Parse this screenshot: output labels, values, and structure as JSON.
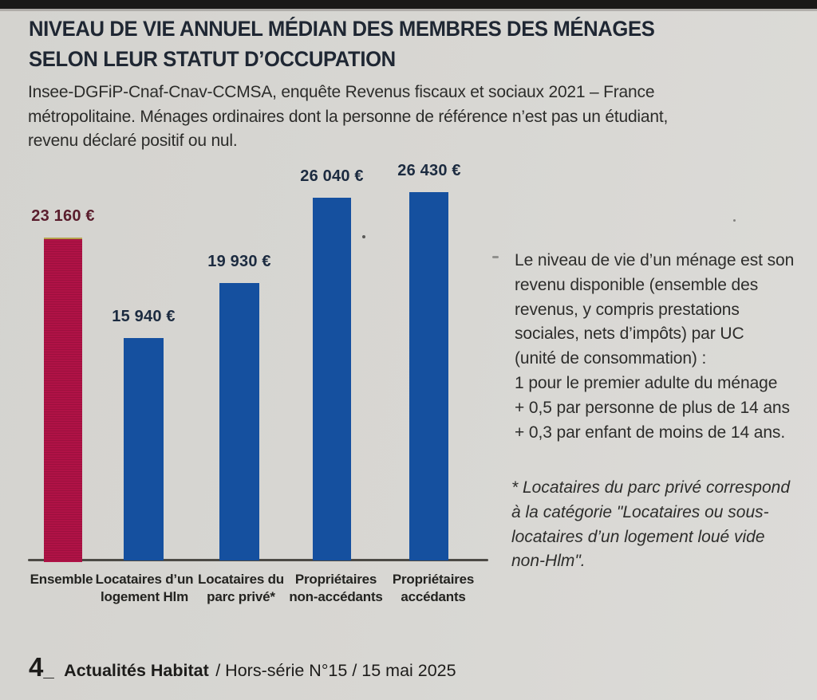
{
  "header": {
    "title_line1": "NIVEAU DE VIE ANNUEL MÉDIAN DES MEMBRES DES MÉNAGES",
    "title_line2": "SELON LEUR STATUT D’OCCUPATION",
    "source_note": "Insee-DGFiP-Cnaf-Cnav-CCMSA, enquête Revenus fiscaux et sociaux 2021 – France\nmétropolitaine. Ménages ordinaires dont la personne de référence n’est pas un étudiant,\nrevenu déclaré positif ou nul."
  },
  "chart_data": {
    "type": "bar",
    "title": "Niveau de vie annuel médian des membres des ménages selon leur statut d’occupation",
    "unit": "€ / an",
    "categories": [
      "Ensemble",
      "Locataires d’un\nlogement Hlm",
      "Locataires du\nparc privé*",
      "Propriétaires\nnon-accédants",
      "Propriétaires\naccédants"
    ],
    "values": [
      23160,
      15940,
      19930,
      26040,
      26430
    ],
    "value_labels": [
      "23 160 €",
      "15 940 €",
      "19 930 €",
      "26 040 €",
      "26 430 €"
    ],
    "bar_colors": [
      "#b01246",
      "#15509f",
      "#15509f",
      "#15509f",
      "#15509f"
    ],
    "value_label_colors": [
      "#5a1d2d",
      "#1c2b40",
      "#1c2b40",
      "#1c2b40",
      "#1c2b40"
    ],
    "axis_color": "#4c4a45",
    "ylim": [
      0,
      27000
    ],
    "grid": false,
    "legend": "none",
    "value_label_position": "above"
  },
  "annotation": {
    "definition": "Le niveau de vie d’un ménage est son\nrevenu disponible (ensemble des\nrevenus, y compris prestations\nsociales, nets d’impôts) par UC\n(unité de consommation) :\n1 pour le premier adulte du ménage\n+ 0,5 par personne de plus de 14 ans\n+ 0,3 par enfant de moins de 14 ans.",
    "footnote": "* Locataires du parc privé correspond\nà la catégorie \"Locataires ou sous-\nlocataires d’un logement loué vide\nnon-Hlm\"."
  },
  "footer": {
    "page_number": "4",
    "separator": "_",
    "magazine": "Actualités Habitat",
    "issue": "/ Hors-série N°15 / 15 mai 2025"
  },
  "colors": {
    "background": "#d7d6d2",
    "accent_red": "#b01246",
    "brand_blue": "#15509f",
    "title_ink": "#1f2733",
    "body_ink": "#2d2d2b"
  }
}
